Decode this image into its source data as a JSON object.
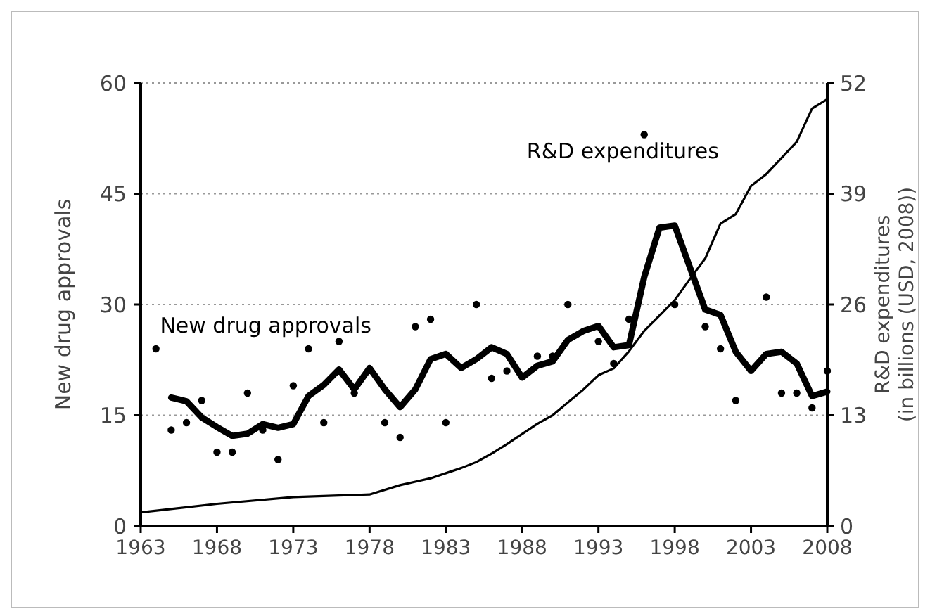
{
  "chart_data": {
    "type": "line",
    "ylabel": "New drug approvals",
    "y2label": "R&D expenditures\n(in billions (USD, 2008))",
    "xlim": [
      1963,
      2008
    ],
    "xticks": [
      1963,
      1968,
      1973,
      1978,
      1983,
      1988,
      1993,
      1998,
      2003,
      2008
    ],
    "ylim": [
      0,
      60
    ],
    "yticks": [
      0,
      15,
      30,
      45,
      60
    ],
    "y2lim": [
      0,
      52
    ],
    "y2ticks": [
      0,
      13,
      26,
      39,
      52
    ],
    "grid": "y",
    "legend": false,
    "series": [
      {
        "type": "scatter",
        "color": "#000000",
        "marker": "circle",
        "x": [
          1964,
          1965,
          1966,
          1967,
          1968,
          1969,
          1970,
          1971,
          1972,
          1973,
          1974,
          1975,
          1976,
          1977,
          1979,
          1980,
          1981,
          1982,
          1983,
          1985,
          1986,
          1987,
          1989,
          1990,
          1991,
          1993,
          1994,
          1995,
          1996,
          1998,
          2000,
          2001,
          2002,
          2004,
          2005,
          2006,
          2007,
          2008
        ],
        "values": [
          24,
          13,
          14,
          17,
          10,
          10,
          18,
          13,
          9,
          19,
          24,
          14,
          25,
          18,
          14,
          12,
          27,
          28,
          14,
          30,
          20,
          21,
          23,
          23,
          30,
          25,
          22,
          28,
          53,
          30,
          27,
          24,
          17,
          31,
          18,
          18,
          16,
          21
        ]
      },
      {
        "type": "line",
        "name": "New drug approvals",
        "color": "#000000",
        "x": [
          1965,
          1966,
          1967,
          1968,
          1969,
          1970,
          1971,
          1972,
          1973,
          1974,
          1975,
          1976,
          1977,
          1978,
          1979,
          1980,
          1981,
          1982,
          1983,
          1984,
          1985,
          1986,
          1987,
          1988,
          1989,
          1990,
          1991,
          1992,
          1993,
          1994,
          1995,
          1996,
          1997,
          1998,
          1999,
          2000,
          2001,
          2002,
          2003,
          2004,
          2005,
          2006,
          2007,
          2008
        ],
        "values": [
          17.4,
          16.9,
          14.7,
          13.4,
          12.2,
          12.5,
          13.8,
          13.3,
          13.8,
          17.6,
          19.1,
          21.2,
          18.5,
          21.4,
          18.5,
          16.1,
          18.5,
          22.6,
          23.3,
          21.4,
          22.6,
          24.2,
          23.3,
          20.1,
          21.7,
          22.3,
          25.2,
          26.4,
          27.1,
          24.2,
          24.5,
          33.7,
          40.4,
          40.7,
          35.0,
          29.3,
          28.6,
          23.6,
          21.0,
          23.3,
          23.6,
          22.0,
          17.6,
          18.2
        ]
      },
      {
        "type": "line",
        "name": "R&D expenditures",
        "color": "#000000",
        "axis": "y2",
        "x": [
          1963,
          1968,
          1973,
          1978,
          1980,
          1981,
          1982,
          1983,
          1984,
          1985,
          1986,
          1987,
          1988,
          1989,
          1990,
          1991,
          1992,
          1993,
          1994,
          1995,
          1996,
          1997,
          1998,
          1999,
          2000,
          2001,
          2002,
          2003,
          2004,
          2005,
          2006,
          2007,
          2008
        ],
        "values": [
          1.6,
          2.6,
          3.4,
          3.7,
          4.8,
          5.2,
          5.6,
          6.2,
          6.8,
          7.5,
          8.5,
          9.6,
          10.8,
          12.0,
          13.0,
          14.5,
          16.0,
          17.7,
          18.5,
          20.5,
          22.9,
          24.7,
          26.5,
          29.0,
          31.4,
          35.5,
          36.6,
          39.9,
          41.3,
          43.2,
          45.1,
          49.0,
          50.1
        ]
      }
    ]
  }
}
